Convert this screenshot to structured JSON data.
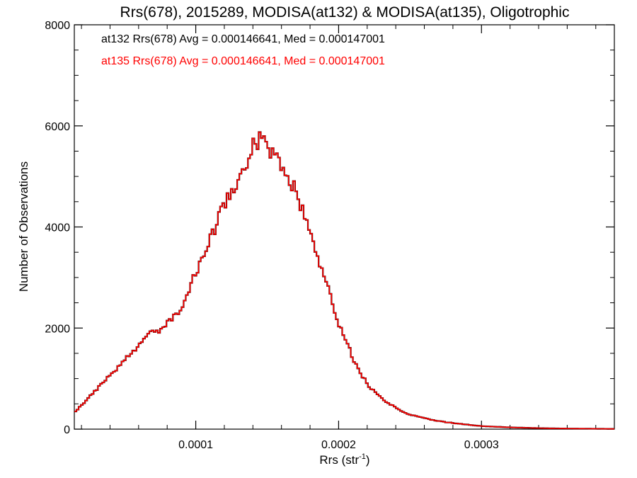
{
  "chart_data": {
    "type": "line",
    "title": "Rrs(678), 2015289, MODISA(at132) & MODISA(at135), Oligotrophic",
    "xlabel": "Rrs (str",
    "xlabel_sup": "-1",
    "xlabel_end": ")",
    "ylabel": "Number of Observations",
    "xlim": [
      1.5e-05,
      0.000393
    ],
    "ylim": [
      0,
      8000
    ],
    "x_ticks": [
      0.0001,
      0.0002,
      0.0003
    ],
    "x_tick_labels": [
      "0.0001",
      "0.0002",
      "0.0003"
    ],
    "y_ticks": [
      0,
      2000,
      4000,
      6000,
      8000
    ],
    "y_tick_labels": [
      "0",
      "2000",
      "4000",
      "6000",
      "8000"
    ],
    "grid": false,
    "bin_width": 1.5e-06,
    "series": [
      {
        "name": "at132",
        "color": "#000000",
        "annotation": "at132 Rrs(678) Avg = 0.000146641, Med = 0.000147001",
        "x": [
          1.5e-05,
          9e-05,
          0.00011,
          0.00012,
          0.00013,
          0.000135,
          0.00014,
          0.000145,
          0.00015,
          0.000155,
          0.00016,
          0.000165,
          0.00017,
          0.000175,
          0.00018,
          0.00019,
          0.0002,
          0.00021,
          0.00022,
          0.00023,
          0.00024,
          0.00025,
          0.00026,
          0.00027,
          0.00028,
          0.00029,
          0.0003,
          0.00032,
          0.00034,
          0.00036,
          0.00038,
          0.000393
        ],
        "y": [
          320,
          2550,
          4000,
          4700,
          5250,
          5480,
          5680,
          5720,
          5600,
          5450,
          5250,
          5000,
          4700,
          4300,
          3850,
          3000,
          2100,
          1450,
          950,
          650,
          450,
          300,
          230,
          170,
          120,
          90,
          60,
          35,
          20,
          12,
          8,
          5
        ]
      },
      {
        "name": "at135",
        "color": "#ff0000",
        "annotation": "at135 Rrs(678) Avg = 0.000146641, Med = 0.000147001",
        "x": [
          1.5e-05,
          9e-05,
          0.00011,
          0.00012,
          0.00013,
          0.000135,
          0.00014,
          0.000145,
          0.00015,
          0.000155,
          0.00016,
          0.000165,
          0.00017,
          0.000175,
          0.00018,
          0.00019,
          0.0002,
          0.00021,
          0.00022,
          0.00023,
          0.00024,
          0.00025,
          0.00026,
          0.00027,
          0.00028,
          0.00029,
          0.0003,
          0.00032,
          0.00034,
          0.00036,
          0.00038,
          0.000393
        ],
        "y": [
          320,
          2550,
          4000,
          4700,
          5250,
          5480,
          5680,
          5720,
          5600,
          5450,
          5250,
          5000,
          4700,
          4300,
          3850,
          3000,
          2100,
          1450,
          950,
          650,
          450,
          300,
          230,
          170,
          120,
          90,
          60,
          35,
          20,
          12,
          8,
          5
        ]
      }
    ]
  }
}
